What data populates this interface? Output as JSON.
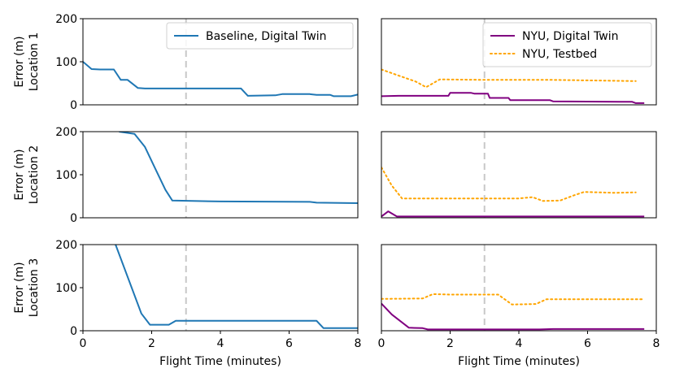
{
  "chart_data": {
    "type": "line",
    "x_axis_label": "Flight Time (minutes)",
    "x_ticks": [
      0,
      2,
      4,
      6,
      8
    ],
    "x_range": [
      0,
      8
    ],
    "y_range": [
      0,
      200
    ],
    "y_ticks": [
      0,
      100,
      200
    ],
    "reference_line_x": 3,
    "row_labels": [
      [
        "Error (m)",
        "Location 1"
      ],
      [
        "Error (m)",
        "Location 2"
      ],
      [
        "Error (m)",
        "Location 3"
      ]
    ],
    "colors": {
      "baseline": "#1f77b4",
      "nyu_twin": "#800080",
      "nyu_testbed": "#ffa500",
      "reference": "#c8c8c8"
    },
    "panels": [
      {
        "row": 0,
        "col": 0,
        "legend": [
          "Baseline, Digital Twin"
        ],
        "series": [
          {
            "name": "Baseline, Digital Twin",
            "style": "solid",
            "color_key": "baseline",
            "points": [
              [
                0,
                100
              ],
              [
                0.25,
                83
              ],
              [
                0.5,
                82
              ],
              [
                0.9,
                82
              ],
              [
                1.1,
                58
              ],
              [
                1.3,
                58
              ],
              [
                1.6,
                39
              ],
              [
                1.8,
                38
              ],
              [
                4.6,
                38
              ],
              [
                4.8,
                21
              ],
              [
                5.6,
                22
              ],
              [
                5.8,
                25
              ],
              [
                6.6,
                25
              ],
              [
                6.8,
                23
              ],
              [
                7.2,
                23
              ],
              [
                7.3,
                20
              ],
              [
                7.8,
                20
              ],
              [
                8,
                24
              ]
            ]
          }
        ]
      },
      {
        "row": 0,
        "col": 1,
        "legend": [
          "NYU, Digital Twin",
          "NYU, Testbed"
        ],
        "series": [
          {
            "name": "NYU, Digital Twin",
            "style": "solid",
            "color_key": "nyu_twin",
            "points": [
              [
                0,
                20
              ],
              [
                0.5,
                21
              ],
              [
                1.95,
                21
              ],
              [
                2,
                28
              ],
              [
                2.6,
                28
              ],
              [
                2.7,
                26
              ],
              [
                3.1,
                26
              ],
              [
                3.15,
                16
              ],
              [
                3.7,
                16
              ],
              [
                3.75,
                11
              ],
              [
                4.9,
                11
              ],
              [
                5.0,
                8
              ],
              [
                7.3,
                7
              ],
              [
                7.4,
                4
              ],
              [
                7.65,
                4
              ]
            ]
          },
          {
            "name": "NYU, Testbed",
            "style": "dotted",
            "color_key": "nyu_testbed",
            "points": [
              [
                0,
                82
              ],
              [
                0.5,
                68
              ],
              [
                1.0,
                54
              ],
              [
                1.3,
                41
              ],
              [
                1.5,
                50
              ],
              [
                1.7,
                59
              ],
              [
                3,
                58
              ],
              [
                5,
                58
              ],
              [
                7.4,
                55
              ]
            ]
          }
        ]
      },
      {
        "row": 1,
        "col": 0,
        "legend": [],
        "series": [
          {
            "name": "Baseline, Digital Twin",
            "style": "solid",
            "color_key": "baseline",
            "points": [
              [
                1.05,
                200
              ],
              [
                1.5,
                195
              ],
              [
                1.8,
                165
              ],
              [
                2.1,
                115
              ],
              [
                2.4,
                65
              ],
              [
                2.6,
                40
              ],
              [
                4,
                38
              ],
              [
                6.6,
                37
              ],
              [
                6.8,
                35
              ],
              [
                8,
                34
              ]
            ]
          }
        ]
      },
      {
        "row": 1,
        "col": 1,
        "legend": [],
        "series": [
          {
            "name": "NYU, Digital Twin",
            "style": "solid",
            "color_key": "nyu_twin",
            "points": [
              [
                0,
                3
              ],
              [
                0.2,
                15
              ],
              [
                0.45,
                3
              ],
              [
                7.65,
                3
              ]
            ]
          },
          {
            "name": "NYU, Testbed",
            "style": "dotted",
            "color_key": "nyu_testbed",
            "points": [
              [
                0,
                117
              ],
              [
                0.3,
                75
              ],
              [
                0.6,
                45
              ],
              [
                4,
                45
              ],
              [
                4.4,
                48
              ],
              [
                4.7,
                39
              ],
              [
                5.2,
                40
              ],
              [
                5.6,
                52
              ],
              [
                5.9,
                60
              ],
              [
                6.8,
                58
              ],
              [
                7.4,
                59
              ]
            ]
          }
        ]
      },
      {
        "row": 2,
        "col": 0,
        "legend": [],
        "series": [
          {
            "name": "Baseline, Digital Twin",
            "style": "solid",
            "color_key": "baseline",
            "points": [
              [
                0.95,
                200
              ],
              [
                1.7,
                40
              ],
              [
                1.95,
                14
              ],
              [
                2.5,
                14
              ],
              [
                2.7,
                23
              ],
              [
                6.8,
                23
              ],
              [
                7.0,
                6
              ],
              [
                8,
                6
              ]
            ]
          }
        ]
      },
      {
        "row": 2,
        "col": 1,
        "legend": [],
        "series": [
          {
            "name": "NYU, Digital Twin",
            "style": "solid",
            "color_key": "nyu_twin",
            "points": [
              [
                0,
                63
              ],
              [
                0.3,
                38
              ],
              [
                0.8,
                7
              ],
              [
                1.2,
                6
              ],
              [
                1.35,
                3
              ],
              [
                4.6,
                3
              ],
              [
                5,
                4
              ],
              [
                7.65,
                4
              ]
            ]
          },
          {
            "name": "NYU, Testbed",
            "style": "dotted",
            "color_key": "nyu_testbed",
            "points": [
              [
                0,
                74
              ],
              [
                1.2,
                75
              ],
              [
                1.5,
                85
              ],
              [
                2,
                84
              ],
              [
                3.4,
                84
              ],
              [
                3.8,
                61
              ],
              [
                4.5,
                62
              ],
              [
                4.8,
                73
              ],
              [
                7.65,
                73
              ]
            ]
          }
        ]
      }
    ]
  }
}
